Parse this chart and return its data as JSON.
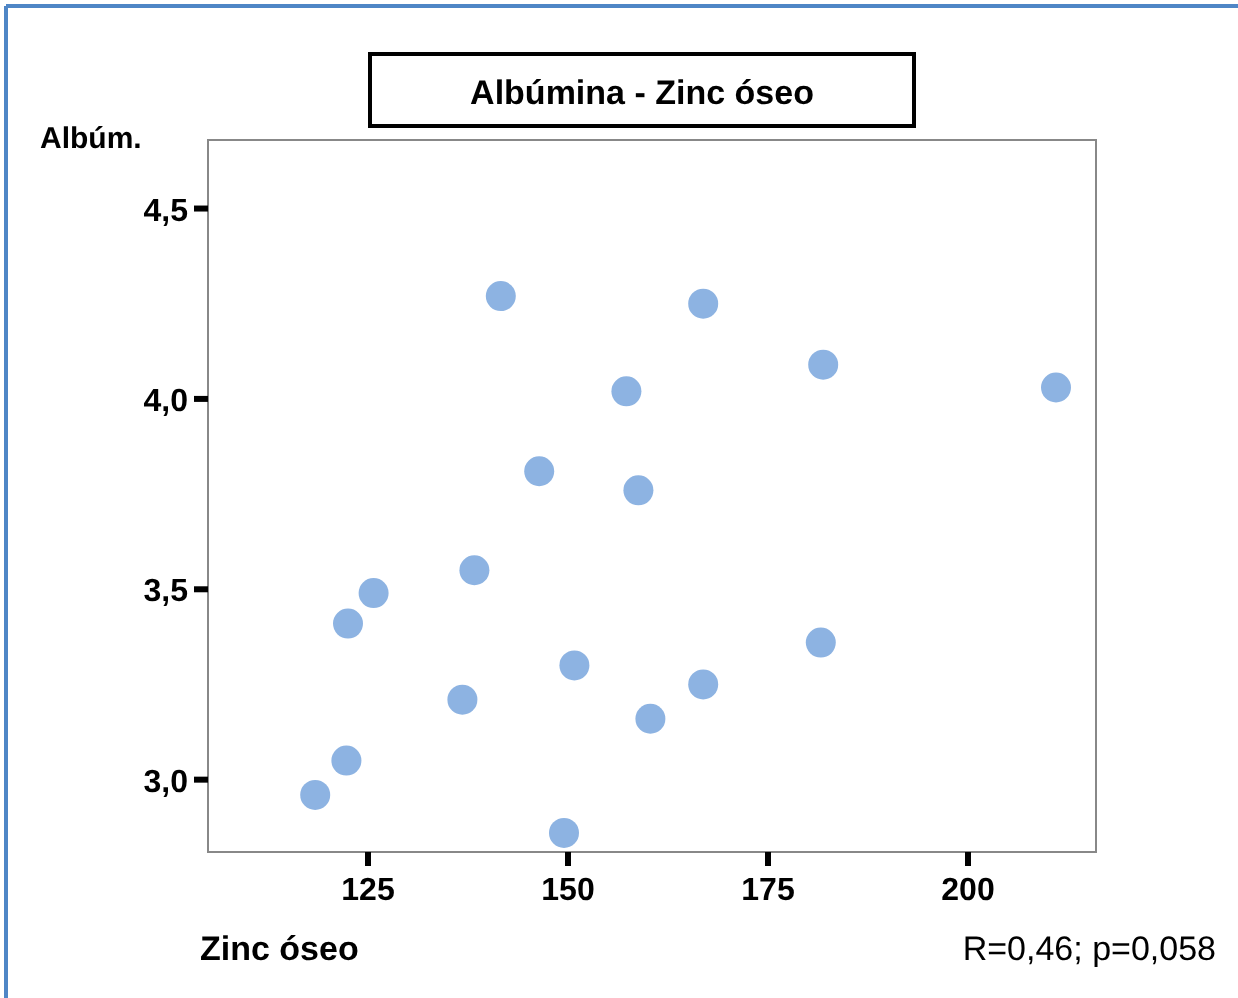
{
  "chart_data": {
    "type": "scatter",
    "title": "Albúmina - Zinc óseo",
    "xlabel": "Zinc óseo",
    "ylabel": "Albúm.",
    "annotations": [
      "R=0,46; p=0,058"
    ],
    "x": [
      141.6,
      166.9,
      181.9,
      211.0,
      157.3,
      146.4,
      158.8,
      138.3,
      125.7,
      122.5,
      181.6,
      150.8,
      136.8,
      166.9,
      160.3,
      122.3,
      118.4,
      149.5
    ],
    "series": [
      {
        "color": "#8db3e2",
        "values": [
          4.27,
          4.25,
          4.09,
          4.03,
          4.02,
          3.81,
          3.76,
          3.55,
          3.49,
          3.41,
          3.36,
          3.3,
          3.21,
          3.25,
          3.16,
          3.05,
          2.96,
          2.86
        ]
      }
    ],
    "xlim": [
      105,
      216
    ],
    "xticks": [
      125,
      150,
      175,
      200
    ],
    "ylim": [
      2.81,
      4.68
    ],
    "yticks": [
      {
        "value": 3.0,
        "label": "3,0"
      },
      {
        "value": 3.5,
        "label": "3,5"
      },
      {
        "value": 4.0,
        "label": "4,0"
      },
      {
        "value": 4.5,
        "label": "4,5"
      }
    ],
    "marker": "circle"
  }
}
